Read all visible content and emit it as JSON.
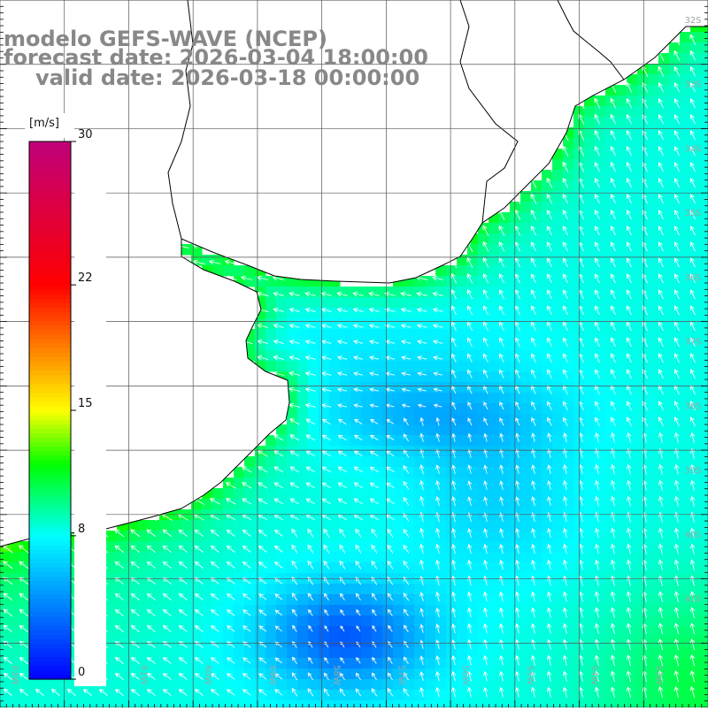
{
  "title": {
    "line1": "modelo GEFS-WAVE (NCEP)",
    "line2": "forecast date: 2026-03-04 18:00:00",
    "line3": "valid date: 2026-03-18 00:00:00"
  },
  "colorbar": {
    "unit": "[m/s]",
    "min": 0,
    "max": 30,
    "ticks": [
      {
        "value": 0,
        "label": "0"
      },
      {
        "value": 8,
        "label": "8"
      },
      {
        "value": 15,
        "label": "15"
      },
      {
        "value": 22,
        "label": "22"
      },
      {
        "value": 30,
        "label": "30"
      }
    ],
    "stops": [
      {
        "value": 0,
        "color": "#0000ff"
      },
      {
        "value": 8,
        "color": "#00ffff"
      },
      {
        "value": 12,
        "color": "#00ff00"
      },
      {
        "value": 15,
        "color": "#ffff00"
      },
      {
        "value": 22,
        "color": "#ff0000"
      },
      {
        "value": 30,
        "color": "#c0007a"
      }
    ]
  },
  "map": {
    "extent": {
      "lon_min": -63,
      "lon_max": -52,
      "lat_min": -43,
      "lat_max": -32
    },
    "lat_labels": [
      "32S",
      "33S",
      "34S",
      "35S",
      "36S",
      "37S",
      "38S",
      "39S",
      "40S",
      "41S"
    ],
    "lon_labels": [
      "63W",
      "62W",
      "61W",
      "60W",
      "59W",
      "58W",
      "57W",
      "56W",
      "55W",
      "54W",
      "53W",
      "52W"
    ],
    "colors": {
      "land": "#ffffff",
      "coast": "#000000",
      "grid": "#555555",
      "arrow": "#ffffff"
    }
  }
}
